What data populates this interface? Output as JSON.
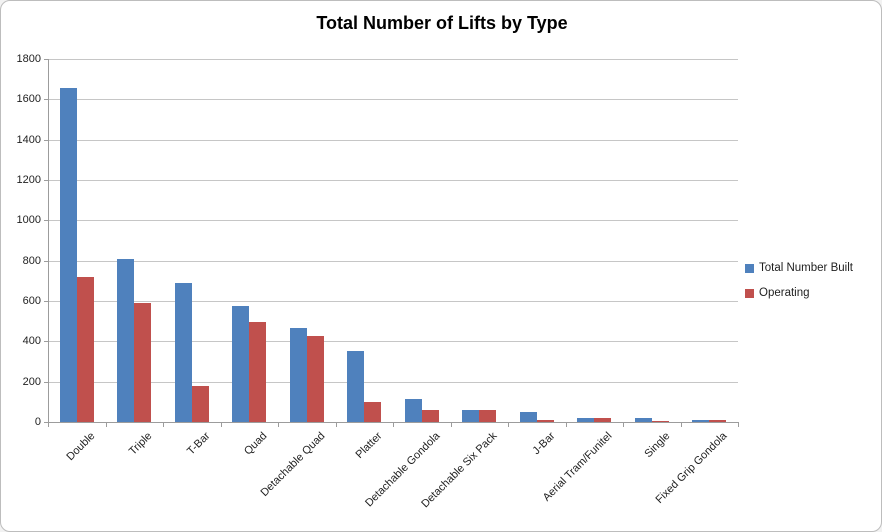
{
  "chart_data": {
    "type": "bar",
    "title": "Total Number of Lifts by Type",
    "categories": [
      "Double",
      "Triple",
      "T-Bar",
      "Quad",
      "Detachable Quad",
      "Platter",
      "Detachable Gondola",
      "Detachable Six Pack",
      "J-Bar",
      "Aerial Tram/Funitel",
      "Single",
      "Fixed Grip Gondola"
    ],
    "series": [
      {
        "name": "Total Number Built",
        "color": "#4F81BD",
        "values": [
          1655,
          810,
          690,
          575,
          465,
          350,
          115,
          60,
          50,
          22,
          20,
          8
        ]
      },
      {
        "name": "Operating",
        "color": "#C0504D",
        "values": [
          720,
          590,
          180,
          495,
          425,
          100,
          60,
          60,
          8,
          20,
          2,
          10
        ]
      }
    ],
    "ylim": [
      0,
      1800
    ],
    "yticks": [
      0,
      200,
      400,
      600,
      800,
      1000,
      1200,
      1400,
      1600,
      1800
    ],
    "xlabel": "",
    "ylabel": "",
    "grid": "horizontal",
    "legend_position": "right",
    "colors": {
      "background": "#FFFFFF",
      "gridline": "#C6C6C6",
      "axis": "#9C9C9C",
      "text": "#1F1F1F"
    }
  }
}
